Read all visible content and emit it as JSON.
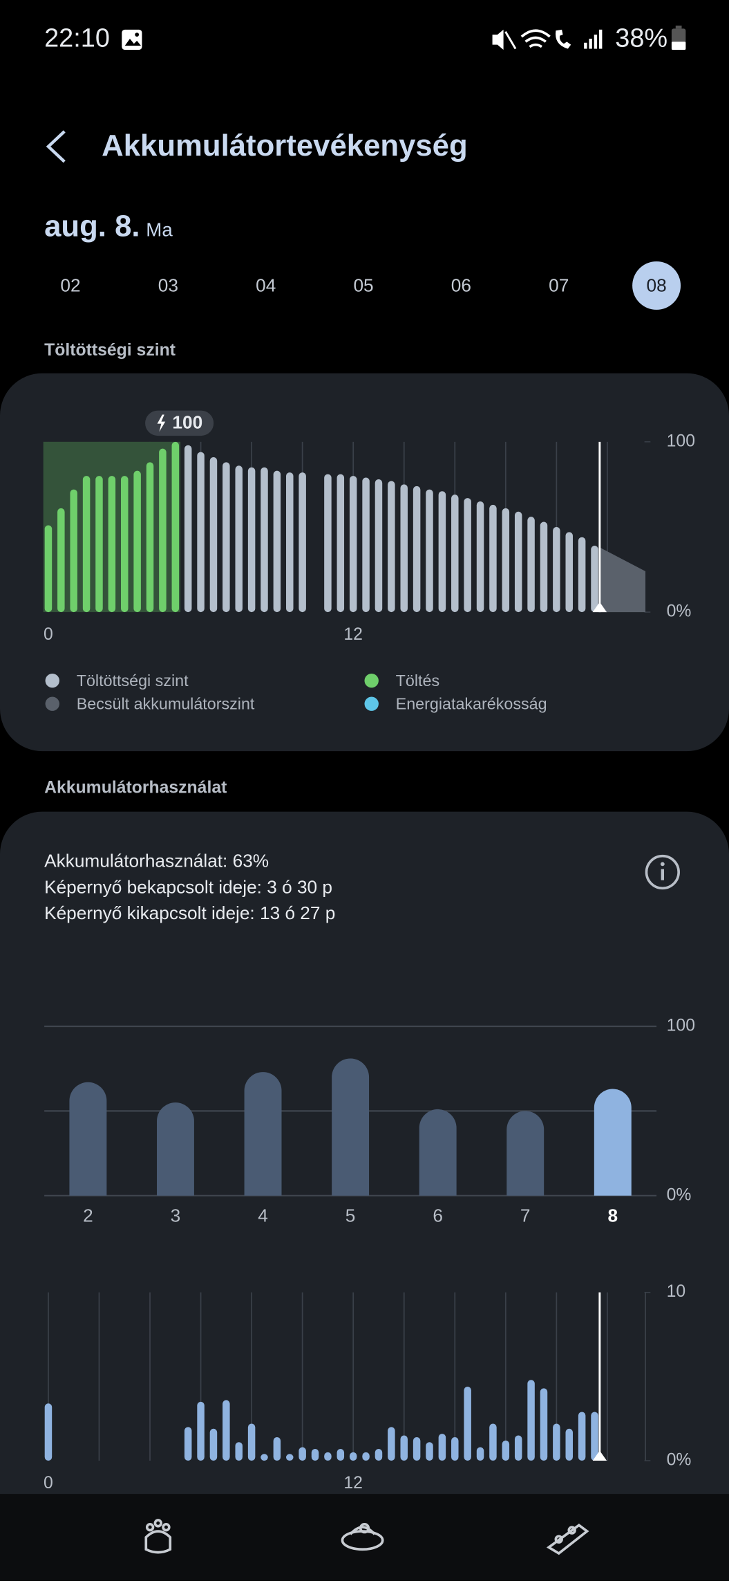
{
  "status_bar": {
    "time": "22:10",
    "battery": "38%"
  },
  "header": {
    "title": "Akkumulátortevékenység"
  },
  "date": {
    "day": "aug. 8.",
    "relative": "Ma",
    "days": [
      "02",
      "03",
      "04",
      "05",
      "06",
      "07",
      "08"
    ],
    "selected": 6
  },
  "sections": {
    "level": "Töltöttségi szint",
    "usage": "Akkumulátorhasználat"
  },
  "usage_summary": [
    "Akkumulátorhasználat: 63%",
    "Képernyő bekapcsolt ideje: 3 ó 30 p",
    "Képernyő kikapcsolt ideje: 13 ó 27 p"
  ],
  "chart_data": [
    {
      "type": "bar",
      "x": [
        0,
        0.5,
        1,
        1.5,
        2,
        2.5,
        3,
        3.5,
        4,
        4.5,
        5,
        5.5,
        6,
        6.5,
        7,
        7.5,
        8,
        8.5,
        9,
        9.5,
        10,
        10.5,
        11,
        11.5,
        12,
        12.5,
        13,
        13.5,
        14,
        14.5,
        15,
        15.5,
        16,
        16.5,
        17,
        17.5,
        18,
        18.5,
        19,
        19.5,
        20,
        20.5,
        21,
        21.5
      ],
      "series": [
        {
          "name": "Töltés",
          "color": "#6fcf6b",
          "values": [
            51,
            61,
            72,
            80,
            80,
            80,
            80,
            83,
            88,
            96,
            100,
            null,
            null,
            null,
            null,
            null,
            null,
            null,
            null,
            null,
            null,
            null,
            null,
            null,
            null,
            null,
            null,
            null,
            null,
            null,
            null,
            null,
            null,
            null,
            null,
            null,
            null,
            null,
            null,
            null,
            null,
            null,
            null,
            null
          ]
        },
        {
          "name": "Töltöttségi szint",
          "color": "#b4bfcc",
          "values": [
            null,
            null,
            null,
            null,
            null,
            null,
            null,
            null,
            null,
            null,
            null,
            98,
            94,
            91,
            88,
            86,
            85,
            85,
            83,
            82,
            82,
            null,
            81,
            81,
            80,
            79,
            78,
            77,
            75,
            74,
            72,
            71,
            69,
            67,
            65,
            63,
            61,
            59,
            56,
            53,
            50,
            47,
            44,
            39
          ]
        }
      ],
      "estimate": {
        "name": "Becsült akkumulátorszint",
        "color": "#5a616b",
        "x": [
          21.7,
          23.5
        ],
        "values": [
          38,
          24
        ]
      },
      "legend_only": [
        {
          "name": "Energiatakarékosság",
          "color": "#5ec6e8"
        }
      ],
      "peak": 100,
      "now": 21.7,
      "xlim": [
        0,
        23.5
      ],
      "xticks": [
        0,
        12
      ],
      "x_gridlines": [
        0,
        2,
        4,
        6,
        8,
        10,
        12,
        14,
        16,
        18,
        20,
        22
      ],
      "ylim": [
        0,
        100
      ],
      "yticks": [
        {
          "value": 0,
          "label": "0%"
        },
        100
      ]
    },
    {
      "type": "column",
      "categories": [
        "2",
        "3",
        "4",
        "5",
        "6",
        "7",
        "8"
      ],
      "values": [
        67,
        55,
        73,
        81,
        51,
        50,
        63
      ],
      "color": "#4a5b73",
      "highlight_color": "#8fb3e0",
      "selected": 6,
      "ylim": [
        0,
        100
      ],
      "yticks": [
        {
          "value": 0,
          "label": "0%"
        },
        100
      ],
      "y_gridlines": [
        0,
        50,
        100
      ]
    },
    {
      "type": "bar",
      "x": [
        0,
        0.5,
        1,
        1.5,
        2,
        2.5,
        3,
        3.5,
        4,
        4.5,
        5,
        5.5,
        6,
        6.5,
        7,
        7.5,
        8,
        8.5,
        9,
        9.5,
        10,
        10.5,
        11,
        11.5,
        12,
        12.5,
        13,
        13.5,
        14,
        14.5,
        15,
        15.5,
        16,
        16.5,
        17,
        17.5,
        18,
        18.5,
        19,
        19.5,
        20,
        20.5,
        21,
        21.5
      ],
      "values": [
        3.4,
        null,
        null,
        null,
        null,
        null,
        null,
        null,
        null,
        null,
        null,
        2.0,
        3.5,
        1.9,
        3.6,
        1.1,
        2.2,
        0.4,
        1.4,
        0.4,
        0.8,
        0.7,
        0.5,
        0.7,
        0.5,
        0.5,
        0.7,
        2.0,
        1.5,
        1.4,
        1.1,
        1.6,
        1.4,
        4.4,
        0.8,
        2.2,
        1.2,
        1.5,
        4.8,
        4.3,
        2.2,
        1.9,
        2.9,
        2.9
      ],
      "color": "#8fb3e0",
      "now": 21.7,
      "xlim": [
        0,
        23.5
      ],
      "xticks": [
        0,
        12
      ],
      "x_gridlines": [
        0,
        2,
        4,
        6,
        8,
        10,
        12,
        14,
        16,
        18,
        20,
        22,
        23.5
      ],
      "ylim": [
        0,
        10
      ],
      "yticks": [
        {
          "value": 0,
          "label": "0%"
        },
        10
      ]
    }
  ]
}
